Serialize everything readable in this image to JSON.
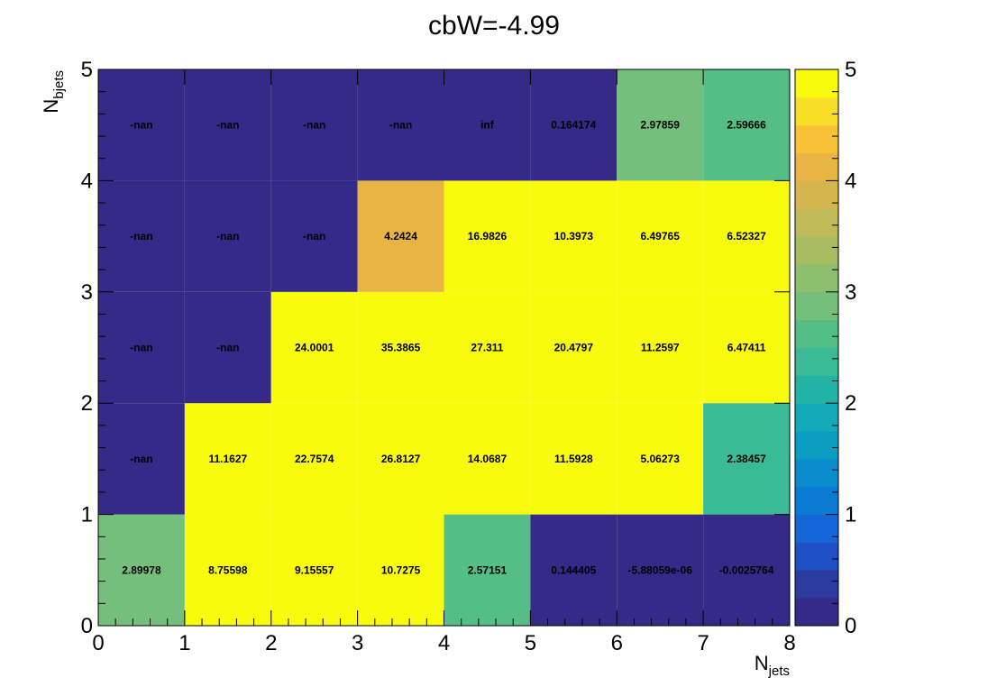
{
  "chart_data": {
    "type": "heatmap",
    "title": "cbW=-4.99",
    "xlabel": "N",
    "xlabel_sub": "jets",
    "ylabel": "N",
    "ylabel_sub": "bjets",
    "xlim": [
      0,
      8
    ],
    "ylim": [
      0,
      5
    ],
    "zlim": [
      0,
      5
    ],
    "x_ticks": [
      "0",
      "1",
      "2",
      "3",
      "4",
      "5",
      "6",
      "7",
      "8"
    ],
    "y_ticks": [
      "0",
      "1",
      "2",
      "3",
      "4",
      "5"
    ],
    "z_ticks": [
      "0",
      "1",
      "2",
      "3",
      "4",
      "5"
    ],
    "colormap": "parula",
    "cells": [
      {
        "x": 0,
        "y": 0,
        "value": 2.89978,
        "label": "2.89978"
      },
      {
        "x": 1,
        "y": 0,
        "value": 8.75598,
        "label": "8.75598"
      },
      {
        "x": 2,
        "y": 0,
        "value": 9.15557,
        "label": "9.15557"
      },
      {
        "x": 3,
        "y": 0,
        "value": 10.7275,
        "label": "10.7275"
      },
      {
        "x": 4,
        "y": 0,
        "value": 2.57151,
        "label": "2.57151"
      },
      {
        "x": 5,
        "y": 0,
        "value": 0.144405,
        "label": "0.144405"
      },
      {
        "x": 6,
        "y": 0,
        "value": -5.88059e-06,
        "label": "-5.88059e-06"
      },
      {
        "x": 7,
        "y": 0,
        "value": -0.0025764,
        "label": "-0.0025764"
      },
      {
        "x": 0,
        "y": 1,
        "value": null,
        "label": "-nan"
      },
      {
        "x": 1,
        "y": 1,
        "value": 11.1627,
        "label": "11.1627"
      },
      {
        "x": 2,
        "y": 1,
        "value": 22.7574,
        "label": "22.7574"
      },
      {
        "x": 3,
        "y": 1,
        "value": 26.8127,
        "label": "26.8127"
      },
      {
        "x": 4,
        "y": 1,
        "value": 14.0687,
        "label": "14.0687"
      },
      {
        "x": 5,
        "y": 1,
        "value": 11.5928,
        "label": "11.5928"
      },
      {
        "x": 6,
        "y": 1,
        "value": 5.06273,
        "label": "5.06273"
      },
      {
        "x": 7,
        "y": 1,
        "value": 2.38457,
        "label": "2.38457"
      },
      {
        "x": 0,
        "y": 2,
        "value": null,
        "label": "-nan"
      },
      {
        "x": 1,
        "y": 2,
        "value": null,
        "label": "-nan"
      },
      {
        "x": 2,
        "y": 2,
        "value": 24.0001,
        "label": "24.0001"
      },
      {
        "x": 3,
        "y": 2,
        "value": 35.3865,
        "label": "35.3865"
      },
      {
        "x": 4,
        "y": 2,
        "value": 27.311,
        "label": "27.311"
      },
      {
        "x": 5,
        "y": 2,
        "value": 20.4797,
        "label": "20.4797"
      },
      {
        "x": 6,
        "y": 2,
        "value": 11.2597,
        "label": "11.2597"
      },
      {
        "x": 7,
        "y": 2,
        "value": 6.47411,
        "label": "6.47411"
      },
      {
        "x": 0,
        "y": 3,
        "value": null,
        "label": "-nan"
      },
      {
        "x": 1,
        "y": 3,
        "value": null,
        "label": "-nan"
      },
      {
        "x": 2,
        "y": 3,
        "value": null,
        "label": "-nan"
      },
      {
        "x": 3,
        "y": 3,
        "value": 4.2424,
        "label": "4.2424"
      },
      {
        "x": 4,
        "y": 3,
        "value": 16.9826,
        "label": "16.9826"
      },
      {
        "x": 5,
        "y": 3,
        "value": 10.3973,
        "label": "10.3973"
      },
      {
        "x": 6,
        "y": 3,
        "value": 6.49765,
        "label": "6.49765"
      },
      {
        "x": 7,
        "y": 3,
        "value": 6.52327,
        "label": "6.52327"
      },
      {
        "x": 0,
        "y": 4,
        "value": null,
        "label": "-nan"
      },
      {
        "x": 1,
        "y": 4,
        "value": null,
        "label": "-nan"
      },
      {
        "x": 2,
        "y": 4,
        "value": null,
        "label": "-nan"
      },
      {
        "x": 3,
        "y": 4,
        "value": null,
        "label": "-nan"
      },
      {
        "x": 4,
        "y": 4,
        "value": null,
        "label": "inf"
      },
      {
        "x": 5,
        "y": 4,
        "value": 0.164174,
        "label": "0.164174"
      },
      {
        "x": 6,
        "y": 4,
        "value": 2.97859,
        "label": "2.97859"
      },
      {
        "x": 7,
        "y": 4,
        "value": 2.59666,
        "label": "2.59666"
      }
    ]
  }
}
